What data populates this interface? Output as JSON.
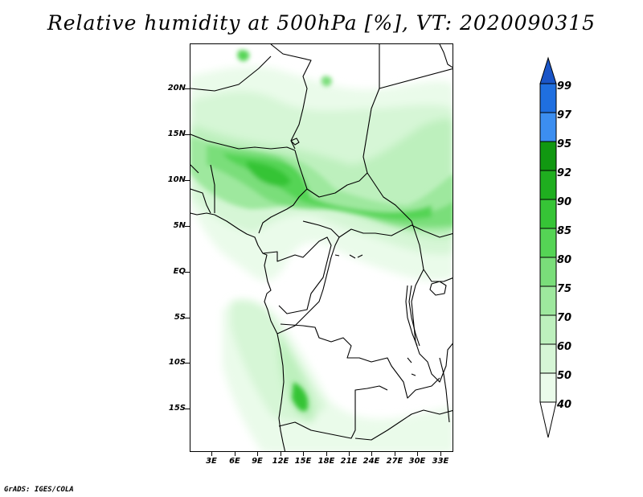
{
  "title": "Relative humidity at 500hPa [%], VT: 2020090315",
  "credit": "GrADS: IGES/COLA",
  "lat_labels": [
    "20N",
    "15N",
    "10N",
    "5N",
    "EQ",
    "5S",
    "10S",
    "15S"
  ],
  "lon_labels": [
    "3E",
    "6E",
    "9E",
    "12E",
    "15E",
    "18E",
    "21E",
    "24E",
    "27E",
    "30E",
    "33E"
  ],
  "colorbar": {
    "levels": [
      "99",
      "97",
      "95",
      "92",
      "90",
      "85",
      "80",
      "75",
      "70",
      "60",
      "50",
      "40"
    ],
    "colors": {
      "top_arrow": "#1a55c8",
      "c97_99": "#1f6fe0",
      "c95_97": "#3c8ef0",
      "c92_95": "#119811",
      "c90_92": "#1fae1f",
      "c85_90": "#36c436",
      "c80_85": "#55d455",
      "c75_80": "#7ade7a",
      "c70_75": "#9ee89e",
      "c60_70": "#bdf0bd",
      "c50_60": "#d6f6d6",
      "c40_50": "#eafbea",
      "bottom_arrow": "#ffffff"
    }
  }
}
